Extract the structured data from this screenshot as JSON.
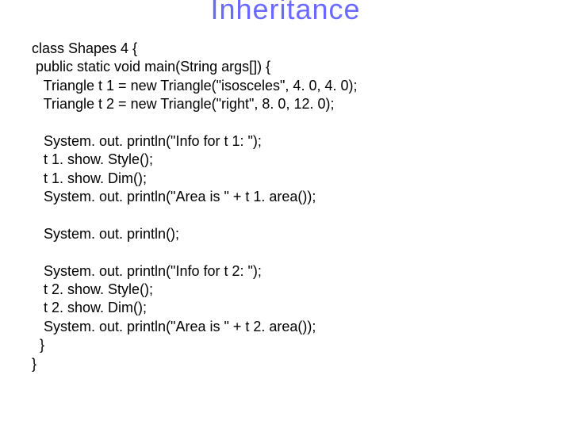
{
  "title": "Inheritance",
  "code": {
    "l1": "class Shapes 4 {",
    "l2": " public static void main(String args[]) {",
    "l3": "   Triangle t 1 = new Triangle(\"isosceles\", 4. 0, 4. 0);",
    "l4": "   Triangle t 2 = new Triangle(\"right\", 8. 0, 12. 0);",
    "l5": "",
    "l6": "   System. out. println(\"Info for t 1: \");",
    "l7": "   t 1. show. Style();",
    "l8": "   t 1. show. Dim();",
    "l9": "   System. out. println(\"Area is \" + t 1. area());",
    "l10": "",
    "l11": "   System. out. println();",
    "l12": "",
    "l13": "   System. out. println(\"Info for t 2: \");",
    "l14": "   t 2. show. Style();",
    "l15": "   t 2. show. Dim();",
    "l16": "   System. out. println(\"Area is \" + t 2. area());",
    "l17": "  }",
    "l18": "}"
  },
  "colors": {
    "title": "#6a6aff",
    "text": "#000000",
    "bg": "#ffffff"
  },
  "fontsizes": {
    "title": 36,
    "code": 18
  }
}
